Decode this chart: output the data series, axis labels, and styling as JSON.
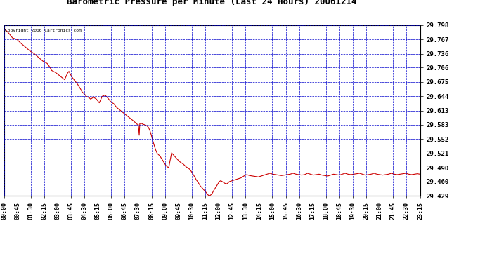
{
  "title": "Barometric Pressure per Minute (Last 24 Hours) 20061214",
  "copyright_text": "Copyright 2006 Cartronics.com",
  "background_color": "#ffffff",
  "plot_background": "#ffffff",
  "line_color": "#cc0000",
  "grid_color": "#0000cc",
  "axis_color": "#000000",
  "yticks": [
    29.429,
    29.46,
    29.49,
    29.521,
    29.552,
    29.583,
    29.613,
    29.644,
    29.675,
    29.706,
    29.736,
    29.767,
    29.798
  ],
  "xtick_labels": [
    "00:00",
    "00:45",
    "01:30",
    "02:15",
    "03:00",
    "03:45",
    "04:30",
    "05:15",
    "06:00",
    "06:45",
    "07:30",
    "08:15",
    "09:00",
    "09:45",
    "10:30",
    "11:15",
    "12:00",
    "12:45",
    "13:30",
    "14:15",
    "15:00",
    "15:45",
    "16:30",
    "17:15",
    "18:00",
    "18:45",
    "19:30",
    "20:15",
    "21:00",
    "21:45",
    "22:30",
    "23:15"
  ],
  "ymin": 29.429,
  "ymax": 29.798,
  "xmin": 0,
  "xmax": 1439,
  "pressure_data": [
    [
      0,
      29.79
    ],
    [
      10,
      29.785
    ],
    [
      20,
      29.778
    ],
    [
      30,
      29.77
    ],
    [
      45,
      29.767
    ],
    [
      60,
      29.758
    ],
    [
      75,
      29.75
    ],
    [
      90,
      29.742
    ],
    [
      105,
      29.736
    ],
    [
      120,
      29.728
    ],
    [
      135,
      29.72
    ],
    [
      150,
      29.715
    ],
    [
      160,
      29.706
    ],
    [
      165,
      29.7
    ],
    [
      180,
      29.695
    ],
    [
      190,
      29.69
    ],
    [
      200,
      29.685
    ],
    [
      210,
      29.68
    ],
    [
      220,
      29.694
    ],
    [
      225,
      29.698
    ],
    [
      230,
      29.692
    ],
    [
      235,
      29.686
    ],
    [
      245,
      29.678
    ],
    [
      255,
      29.67
    ],
    [
      265,
      29.66
    ],
    [
      270,
      29.654
    ],
    [
      280,
      29.648
    ],
    [
      285,
      29.644
    ],
    [
      295,
      29.641
    ],
    [
      300,
      29.638
    ],
    [
      305,
      29.64
    ],
    [
      310,
      29.642
    ],
    [
      315,
      29.64
    ],
    [
      320,
      29.638
    ],
    [
      325,
      29.634
    ],
    [
      330,
      29.63
    ],
    [
      340,
      29.644
    ],
    [
      350,
      29.647
    ],
    [
      355,
      29.643
    ],
    [
      360,
      29.64
    ],
    [
      365,
      29.636
    ],
    [
      370,
      29.632
    ],
    [
      380,
      29.628
    ],
    [
      390,
      29.62
    ],
    [
      400,
      29.615
    ],
    [
      410,
      29.61
    ],
    [
      420,
      29.605
    ],
    [
      430,
      29.6
    ],
    [
      440,
      29.595
    ],
    [
      450,
      29.59
    ],
    [
      460,
      29.584
    ],
    [
      465,
      29.583
    ],
    [
      468,
      29.56
    ],
    [
      470,
      29.585
    ],
    [
      475,
      29.586
    ],
    [
      480,
      29.584
    ],
    [
      485,
      29.583
    ],
    [
      490,
      29.582
    ],
    [
      495,
      29.58
    ],
    [
      500,
      29.577
    ],
    [
      505,
      29.57
    ],
    [
      510,
      29.56
    ],
    [
      515,
      29.548
    ],
    [
      520,
      29.538
    ],
    [
      525,
      29.528
    ],
    [
      530,
      29.521
    ],
    [
      535,
      29.518
    ],
    [
      540,
      29.515
    ],
    [
      545,
      29.51
    ],
    [
      550,
      29.505
    ],
    [
      555,
      29.5
    ],
    [
      560,
      29.495
    ],
    [
      565,
      29.492
    ],
    [
      570,
      29.49
    ],
    [
      580,
      29.522
    ],
    [
      590,
      29.515
    ],
    [
      600,
      29.508
    ],
    [
      610,
      29.502
    ],
    [
      620,
      29.498
    ],
    [
      630,
      29.492
    ],
    [
      635,
      29.49
    ],
    [
      640,
      29.488
    ],
    [
      645,
      29.485
    ],
    [
      650,
      29.48
    ],
    [
      655,
      29.475
    ],
    [
      660,
      29.47
    ],
    [
      665,
      29.464
    ],
    [
      670,
      29.46
    ],
    [
      675,
      29.455
    ],
    [
      680,
      29.45
    ],
    [
      685,
      29.447
    ],
    [
      690,
      29.443
    ],
    [
      695,
      29.44
    ],
    [
      700,
      29.436
    ],
    [
      705,
      29.432
    ],
    [
      710,
      29.429
    ],
    [
      715,
      29.431
    ],
    [
      720,
      29.434
    ],
    [
      725,
      29.44
    ],
    [
      730,
      29.445
    ],
    [
      735,
      29.45
    ],
    [
      740,
      29.455
    ],
    [
      745,
      29.46
    ],
    [
      750,
      29.462
    ],
    [
      755,
      29.46
    ],
    [
      760,
      29.458
    ],
    [
      765,
      29.456
    ],
    [
      770,
      29.455
    ],
    [
      775,
      29.457
    ],
    [
      780,
      29.46
    ],
    [
      790,
      29.462
    ],
    [
      800,
      29.464
    ],
    [
      810,
      29.466
    ],
    [
      820,
      29.468
    ],
    [
      830,
      29.472
    ],
    [
      840,
      29.475
    ],
    [
      850,
      29.473
    ],
    [
      860,
      29.472
    ],
    [
      870,
      29.471
    ],
    [
      880,
      29.47
    ],
    [
      890,
      29.472
    ],
    [
      900,
      29.474
    ],
    [
      910,
      29.476
    ],
    [
      920,
      29.478
    ],
    [
      930,
      29.476
    ],
    [
      940,
      29.475
    ],
    [
      950,
      29.474
    ],
    [
      960,
      29.473
    ],
    [
      970,
      29.474
    ],
    [
      980,
      29.475
    ],
    [
      990,
      29.476
    ],
    [
      1000,
      29.478
    ],
    [
      1010,
      29.476
    ],
    [
      1020,
      29.475
    ],
    [
      1030,
      29.474
    ],
    [
      1040,
      29.475
    ],
    [
      1050,
      29.478
    ],
    [
      1060,
      29.476
    ],
    [
      1070,
      29.474
    ],
    [
      1080,
      29.475
    ],
    [
      1090,
      29.476
    ],
    [
      1100,
      29.474
    ],
    [
      1110,
      29.473
    ],
    [
      1120,
      29.472
    ],
    [
      1130,
      29.474
    ],
    [
      1140,
      29.476
    ],
    [
      1150,
      29.475
    ],
    [
      1160,
      29.474
    ],
    [
      1170,
      29.476
    ],
    [
      1180,
      29.478
    ],
    [
      1190,
      29.476
    ],
    [
      1200,
      29.475
    ],
    [
      1210,
      29.476
    ],
    [
      1220,
      29.477
    ],
    [
      1230,
      29.478
    ],
    [
      1240,
      29.476
    ],
    [
      1250,
      29.474
    ],
    [
      1260,
      29.475
    ],
    [
      1270,
      29.476
    ],
    [
      1280,
      29.478
    ],
    [
      1290,
      29.476
    ],
    [
      1300,
      29.475
    ],
    [
      1310,
      29.474
    ],
    [
      1320,
      29.475
    ],
    [
      1330,
      29.476
    ],
    [
      1340,
      29.478
    ],
    [
      1350,
      29.476
    ],
    [
      1360,
      29.475
    ],
    [
      1370,
      29.476
    ],
    [
      1380,
      29.477
    ],
    [
      1390,
      29.478
    ],
    [
      1400,
      29.476
    ],
    [
      1410,
      29.475
    ],
    [
      1420,
      29.476
    ],
    [
      1430,
      29.477
    ],
    [
      1439,
      29.476
    ]
  ]
}
